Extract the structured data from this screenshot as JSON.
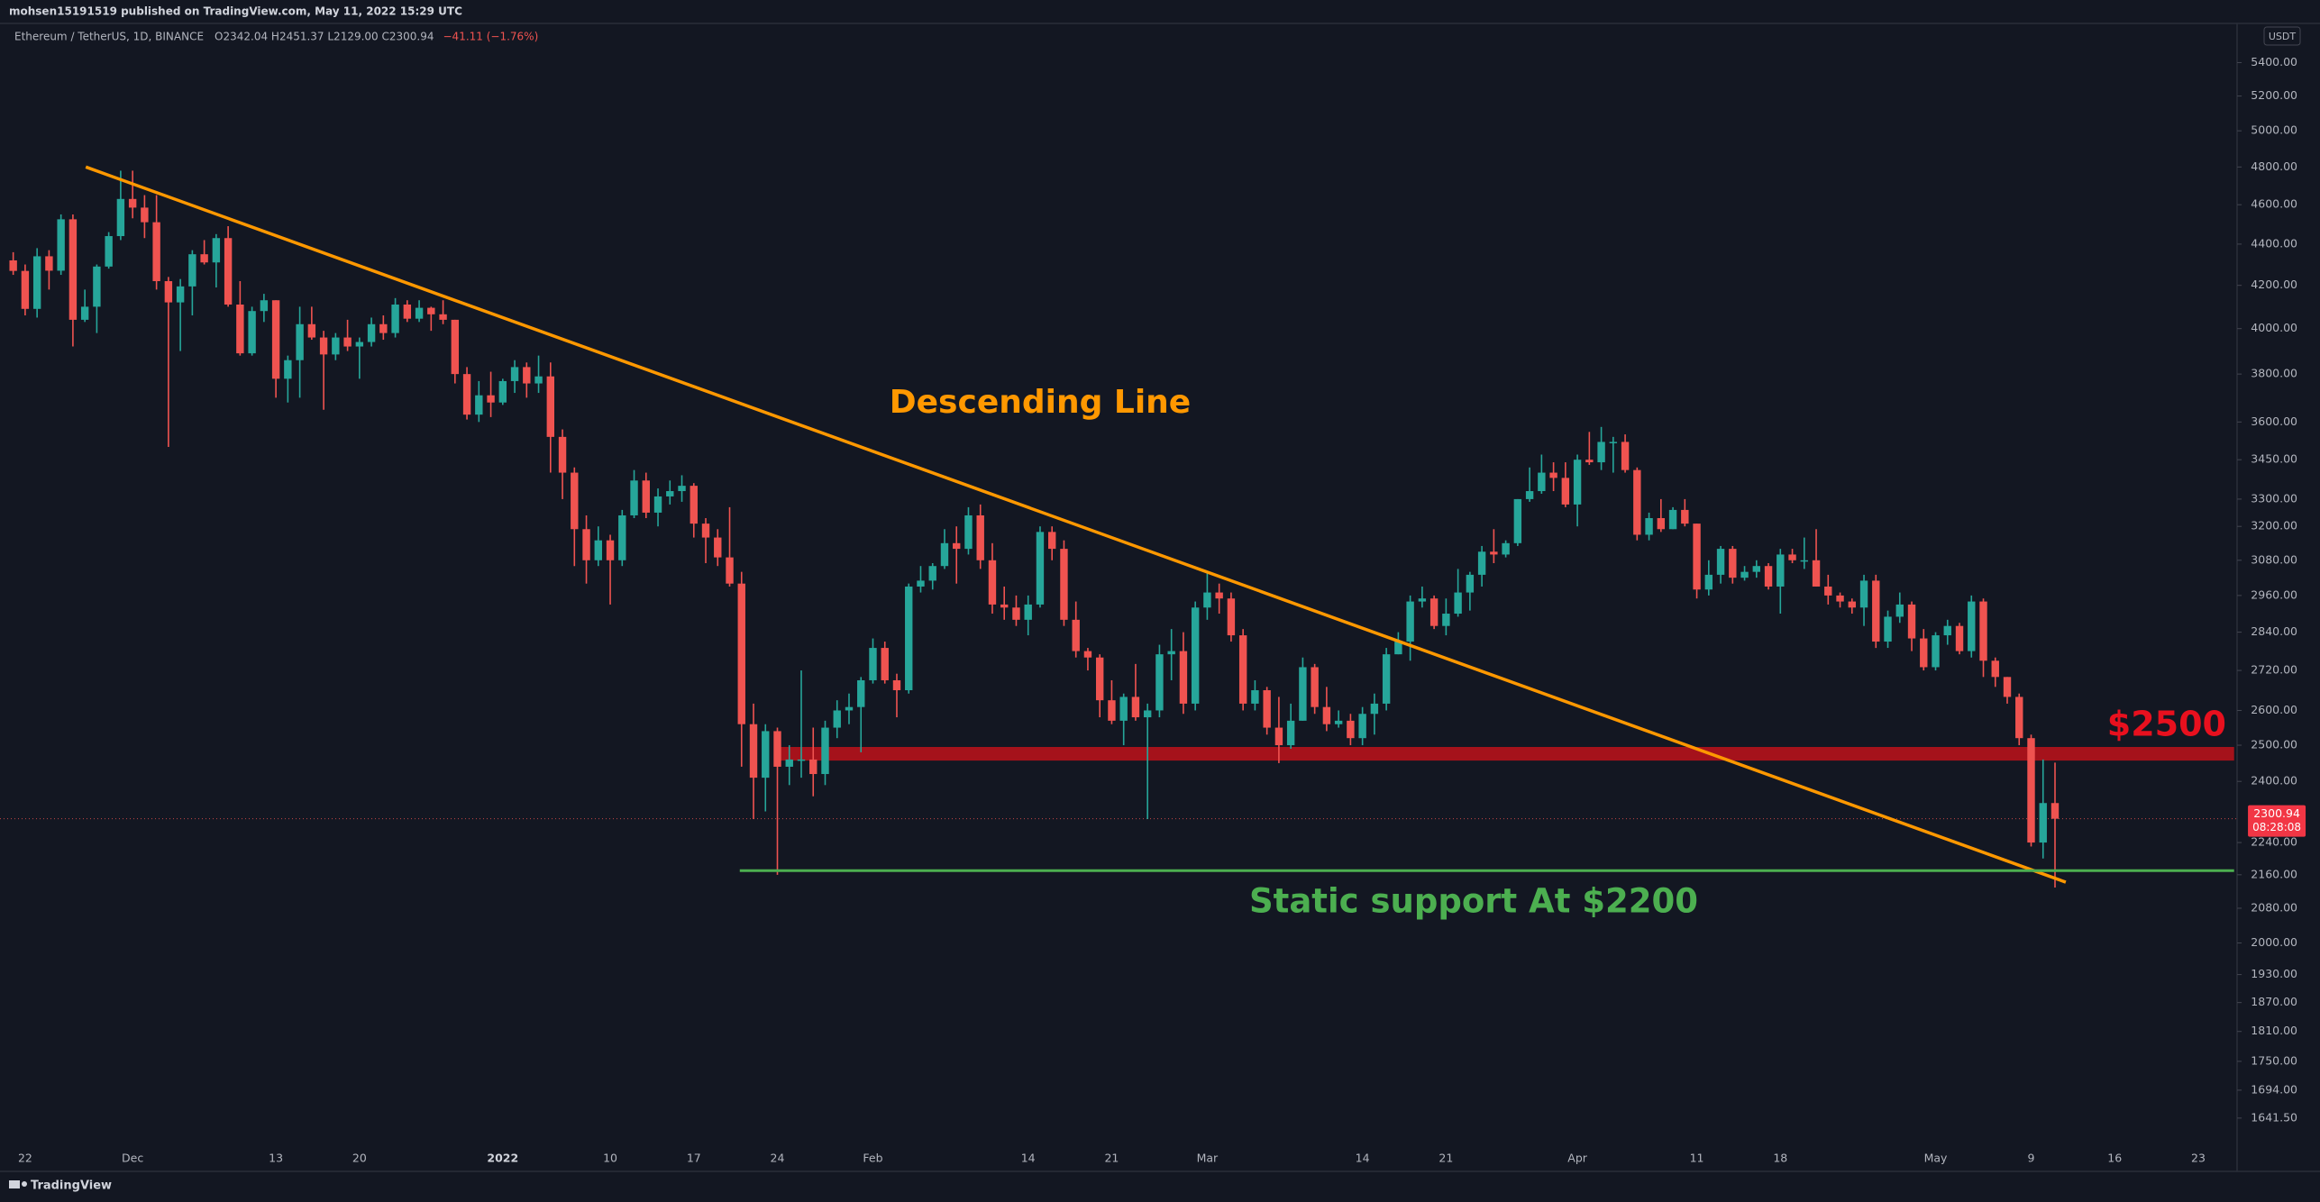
{
  "published": "mohsen15191519 published on TradingView.com, May 11, 2022 15:29 UTC",
  "footer": "TradingView",
  "chart_data": {
    "type": "candlestick",
    "header": {
      "symbol": "Ethereum / TetherUS, 1D, BINANCE",
      "ohlc": "O2342.04 H2451.37 L2129.00 C2300.94",
      "change": "−41.11 (−1.76%)"
    },
    "currency": "USDT",
    "log_scale": true,
    "grid": false,
    "up_color": "#26a69a",
    "down_color": "#ef5350",
    "ylim": [
      1590,
      5633
    ],
    "yticks": [
      {
        "value": 5400,
        "label": "5400.00"
      },
      {
        "value": 5200,
        "label": "5200.00"
      },
      {
        "value": 5000,
        "label": "5000.00"
      },
      {
        "value": 4800,
        "label": "4800.00"
      },
      {
        "value": 4600,
        "label": "4600.00"
      },
      {
        "value": 4400,
        "label": "4400.00"
      },
      {
        "value": 4200,
        "label": "4200.00"
      },
      {
        "value": 4000,
        "label": "4000.00"
      },
      {
        "value": 3800,
        "label": "3800.00"
      },
      {
        "value": 3600,
        "label": "3600.00"
      },
      {
        "value": 3450,
        "label": "3450.00"
      },
      {
        "value": 3300,
        "label": "3300.00"
      },
      {
        "value": 3200,
        "label": "3200.00"
      },
      {
        "value": 3080,
        "label": "3080.00"
      },
      {
        "value": 2960,
        "label": "2960.00"
      },
      {
        "value": 2840,
        "label": "2840.00"
      },
      {
        "value": 2720,
        "label": "2720.00"
      },
      {
        "value": 2600,
        "label": "2600.00"
      },
      {
        "value": 2500,
        "label": "2500.00"
      },
      {
        "value": 2400,
        "label": "2400.00"
      },
      {
        "value": 2240,
        "label": "2240.00"
      },
      {
        "value": 2160,
        "label": "2160.00"
      },
      {
        "value": 2080,
        "label": "2080.00"
      },
      {
        "value": 2000,
        "label": "2000.00"
      },
      {
        "value": 1930,
        "label": "1930.00"
      },
      {
        "value": 1870,
        "label": "1870.00"
      },
      {
        "value": 1810,
        "label": "1810.00"
      },
      {
        "value": 1750,
        "label": "1750.00"
      },
      {
        "value": 1694,
        "label": "1694.00"
      },
      {
        "value": 1641.5,
        "label": "1641.50"
      }
    ],
    "last_price": 2300.94,
    "countdown": "08:28:08",
    "categories": [
      null,
      "22",
      null,
      null,
      null,
      null,
      null,
      null,
      null,
      null,
      "Dec",
      null,
      null,
      null,
      null,
      null,
      null,
      null,
      null,
      null,
      null,
      null,
      "13",
      null,
      null,
      null,
      null,
      null,
      null,
      "20",
      null,
      null,
      null,
      null,
      null,
      null,
      null,
      null,
      null,
      null,
      null,
      "2022",
      null,
      null,
      null,
      null,
      null,
      null,
      null,
      null,
      "10",
      null,
      null,
      null,
      null,
      null,
      null,
      "17",
      null,
      null,
      null,
      null,
      null,
      null,
      "24",
      null,
      null,
      null,
      null,
      null,
      null,
      null,
      "Feb",
      null,
      null,
      null,
      null,
      null,
      null,
      null,
      null,
      null,
      null,
      null,
      null,
      "14",
      null,
      null,
      null,
      null,
      null,
      null,
      "21",
      null,
      null,
      null,
      null,
      null,
      null,
      null,
      "Mar",
      null,
      null,
      null,
      null,
      null,
      null,
      null,
      null,
      null,
      null,
      null,
      null,
      "14",
      null,
      null,
      null,
      null,
      null,
      null,
      "21",
      null,
      null,
      null,
      null,
      null,
      null,
      null,
      null,
      null,
      null,
      "Apr",
      null,
      null,
      null,
      null,
      null,
      null,
      null,
      null,
      null,
      "11",
      null,
      null,
      null,
      null,
      null,
      null,
      "18",
      null,
      null,
      null,
      null,
      null,
      null,
      null,
      null,
      null,
      null,
      null,
      null,
      "May",
      null,
      null,
      null,
      null,
      null,
      null,
      null,
      "9",
      null,
      null,
      null,
      null,
      null,
      null,
      "16",
      null,
      null,
      null,
      null,
      null,
      null,
      "23",
      null,
      null,
      null
    ],
    "open": [
      4320,
      4269,
      4090,
      4340,
      4270,
      4525,
      4040,
      4100,
      4290,
      4440,
      4630,
      4585,
      4510,
      4220,
      4120,
      4195,
      4350,
      4310,
      4430,
      4110,
      3890,
      4080,
      4130,
      3780,
      3860,
      4020,
      3960,
      3885,
      3960,
      3920,
      3940,
      4020,
      3980,
      4110,
      4045,
      4095,
      4065,
      4040,
      3800,
      3630,
      3710,
      3680,
      3770,
      3830,
      3760,
      3790,
      3540,
      3400,
      3190,
      3080,
      3150,
      3080,
      3240,
      3370,
      3250,
      3310,
      3330,
      3350,
      3210,
      3160,
      3090,
      3000,
      2560,
      2410,
      2540,
      2440,
      2460,
      2460,
      2420,
      2550,
      2600,
      2610,
      2690,
      2790,
      2690,
      2660,
      2990,
      3010,
      3060,
      3140,
      3120,
      3240,
      3080,
      2930,
      2920,
      2880,
      2930,
      3180,
      3120,
      2880,
      2780,
      2760,
      2630,
      2570,
      2640,
      2580,
      2600,
      2770,
      2780,
      2620,
      2920,
      2970,
      2950,
      2830,
      2620,
      2660,
      2550,
      2500,
      2570,
      2730,
      2610,
      2560,
      2570,
      2520,
      2590,
      2620,
      2770,
      2810,
      2940,
      2950,
      2860,
      2900,
      2970,
      3030,
      3110,
      3100,
      3140,
      3300,
      3330,
      3400,
      3380,
      3280,
      3450,
      3440,
      3520,
      3520,
      3410,
      3170,
      3230,
      3190,
      3260,
      3210,
      2980,
      3030,
      3120,
      3020,
      3040,
      3060,
      2990,
      3100,
      3080,
      3080,
      2990,
      2960,
      2940,
      2920,
      3010,
      2810,
      2890,
      2930,
      2820,
      2730,
      2830,
      2860,
      2780,
      2940,
      2750,
      2700,
      2640,
      2520,
      2240,
      2342.04,
      null,
      null,
      null,
      null,
      null,
      null,
      null,
      null,
      null,
      null,
      null,
      null,
      null,
      null,
      null
    ],
    "high": [
      4360,
      4300,
      4380,
      4370,
      4550,
      4550,
      4180,
      4300,
      4460,
      4780,
      4780,
      4650,
      4650,
      4240,
      4230,
      4370,
      4420,
      4450,
      4490,
      4220,
      4100,
      4160,
      4130,
      3880,
      4100,
      4100,
      3990,
      3980,
      4040,
      3960,
      4050,
      4060,
      4140,
      4130,
      4130,
      4100,
      4130,
      4040,
      3830,
      3770,
      3810,
      3780,
      3860,
      3850,
      3880,
      3850,
      3570,
      3420,
      3240,
      3200,
      3170,
      3260,
      3410,
      3400,
      3340,
      3370,
      3390,
      3360,
      3230,
      3190,
      3270,
      3040,
      2620,
      2560,
      2550,
      2500,
      2720,
      2550,
      2570,
      2630,
      2650,
      2700,
      2820,
      2810,
      2710,
      3000,
      3060,
      3070,
      3190,
      3200,
      3270,
      3280,
      3140,
      2990,
      2960,
      2960,
      3200,
      3200,
      3150,
      2940,
      2790,
      2770,
      2690,
      2650,
      2740,
      2620,
      2800,
      2850,
      2840,
      2940,
      3040,
      3000,
      2970,
      2850,
      2690,
      2670,
      2640,
      2620,
      2760,
      2740,
      2670,
      2600,
      2590,
      2610,
      2650,
      2790,
      2840,
      2960,
      2990,
      2960,
      2950,
      3050,
      3040,
      3130,
      3190,
      3150,
      3300,
      3420,
      3470,
      3440,
      3440,
      3470,
      3560,
      3580,
      3540,
      3550,
      3420,
      3250,
      3300,
      3270,
      3300,
      3210,
      3080,
      3130,
      3130,
      3060,
      3080,
      3070,
      3120,
      3120,
      3160,
      3190,
      3030,
      2970,
      2950,
      3030,
      3030,
      2910,
      2970,
      2940,
      2850,
      2840,
      2880,
      2870,
      2960,
      2950,
      2760,
      2700,
      2650,
      2530,
      2460,
      2451.37,
      null,
      null,
      null,
      null,
      null,
      null,
      null,
      null,
      null,
      null,
      null,
      null,
      null,
      null,
      null
    ],
    "low": [
      4250,
      4060,
      4050,
      4180,
      4250,
      3920,
      4030,
      3980,
      4280,
      4420,
      4530,
      4430,
      4180,
      3500,
      3900,
      4060,
      4300,
      4190,
      4100,
      3880,
      3880,
      4030,
      3700,
      3680,
      3700,
      3950,
      3650,
      3860,
      3900,
      3780,
      3920,
      3950,
      3960,
      4030,
      4030,
      3990,
      4020,
      3760,
      3610,
      3600,
      3620,
      3670,
      3720,
      3700,
      3720,
      3400,
      3300,
      3060,
      3000,
      3060,
      2930,
      3060,
      3230,
      3230,
      3200,
      3280,
      3290,
      3160,
      3070,
      3060,
      2990,
      2440,
      2300,
      2320,
      2160,
      2390,
      2410,
      2360,
      2390,
      2520,
      2560,
      2480,
      2680,
      2680,
      2580,
      2650,
      2970,
      2980,
      3050,
      3000,
      3100,
      3050,
      2900,
      2880,
      2860,
      2830,
      2920,
      3080,
      2860,
      2760,
      2720,
      2580,
      2560,
      2500,
      2570,
      2300,
      2580,
      2690,
      2590,
      2600,
      2880,
      2900,
      2810,
      2600,
      2600,
      2530,
      2450,
      2490,
      2570,
      2590,
      2540,
      2550,
      2500,
      2500,
      2530,
      2600,
      2770,
      2750,
      2920,
      2850,
      2830,
      2890,
      2910,
      2990,
      3070,
      3090,
      3130,
      3290,
      3320,
      3330,
      3270,
      3200,
      3430,
      3410,
      3400,
      3400,
      3150,
      3150,
      3180,
      3190,
      3200,
      2950,
      2960,
      3000,
      3000,
      3010,
      3020,
      2980,
      2900,
      3070,
      3050,
      2990,
      2930,
      2920,
      2900,
      2860,
      2790,
      2790,
      2870,
      2780,
      2720,
      2720,
      2800,
      2770,
      2760,
      2700,
      2670,
      2620,
      2500,
      2230,
      2200,
      2129,
      null,
      null,
      null,
      null,
      null,
      null,
      null,
      null,
      null,
      null,
      null,
      null,
      null,
      null,
      null
    ],
    "close": [
      4269,
      4090,
      4340,
      4270,
      4525,
      4040,
      4100,
      4290,
      4440,
      4630,
      4585,
      4510,
      4220,
      4120,
      4195,
      4350,
      4310,
      4430,
      4110,
      3890,
      4080,
      4130,
      3780,
      3860,
      4020,
      3960,
      3885,
      3960,
      3920,
      3940,
      4020,
      3980,
      4110,
      4045,
      4095,
      4065,
      4040,
      3800,
      3630,
      3710,
      3680,
      3770,
      3830,
      3760,
      3790,
      3540,
      3400,
      3190,
      3080,
      3150,
      3080,
      3240,
      3370,
      3250,
      3310,
      3330,
      3350,
      3210,
      3160,
      3090,
      3000,
      2560,
      2410,
      2540,
      2440,
      2460,
      2460,
      2420,
      2550,
      2600,
      2610,
      2690,
      2790,
      2690,
      2660,
      2990,
      3010,
      3060,
      3140,
      3120,
      3240,
      3080,
      2930,
      2920,
      2880,
      2930,
      3180,
      3120,
      2880,
      2780,
      2760,
      2630,
      2570,
      2640,
      2580,
      2600,
      2770,
      2780,
      2620,
      2920,
      2970,
      2950,
      2830,
      2620,
      2660,
      2550,
      2500,
      2570,
      2730,
      2610,
      2560,
      2570,
      2520,
      2590,
      2620,
      2770,
      2810,
      2940,
      2950,
      2860,
      2900,
      2970,
      3030,
      3110,
      3100,
      3140,
      3300,
      3330,
      3400,
      3380,
      3280,
      3450,
      3440,
      3520,
      3520,
      3410,
      3170,
      3230,
      3190,
      3260,
      3210,
      2980,
      3030,
      3120,
      3020,
      3040,
      3060,
      2990,
      3100,
      3080,
      3080,
      2990,
      2960,
      2940,
      2920,
      3010,
      2810,
      2890,
      2930,
      2820,
      2730,
      2830,
      2860,
      2780,
      2940,
      2750,
      2700,
      2640,
      2520,
      2240,
      2342.04,
      2300.94,
      null,
      null,
      null,
      null,
      null,
      null,
      null,
      null,
      null,
      null,
      null,
      null,
      null,
      null,
      null
    ],
    "annotations": [
      {
        "type": "trendline",
        "label": "Descending Line",
        "color": "#ff9800",
        "x": [
          6.08,
          171.9
        ],
        "y": [
          4800,
          2142
        ]
      },
      {
        "type": "zone",
        "label": "$2500",
        "color": "#b2121b",
        "label_color": "#e8101e",
        "x": [
          64.2,
          186
        ],
        "y": [
          2457,
          2495
        ]
      },
      {
        "type": "hline",
        "label": "Static support At $2200",
        "color": "#4caf50",
        "x": [
          60.85,
          186
        ],
        "y": 2170
      }
    ]
  }
}
